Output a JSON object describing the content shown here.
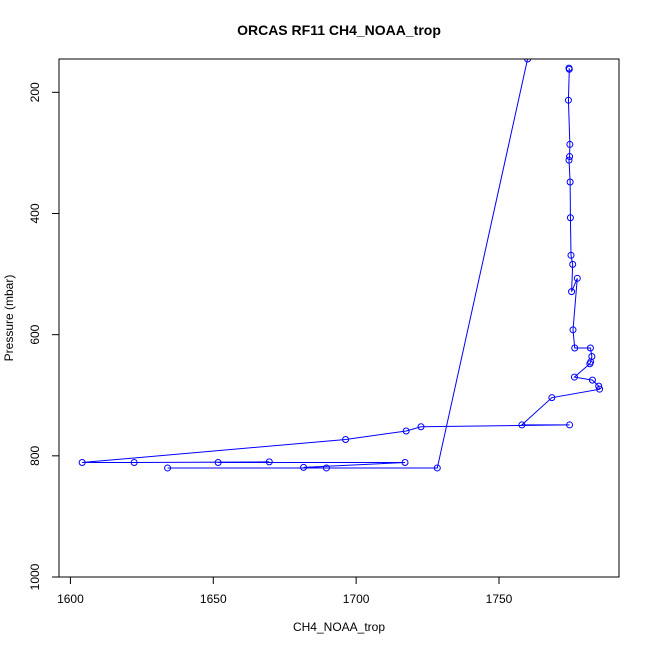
{
  "chart_data": {
    "type": "line",
    "title": "ORCAS RF11 CH4_NOAA_trop",
    "xlabel": "CH4_NOAA_trop",
    "ylabel": "Pressure (mbar)",
    "xlim": [
      1596,
      1792
    ],
    "ylim": [
      1000,
      145
    ],
    "y_reversed": true,
    "x_ticks": [
      1600,
      1650,
      1700,
      1750
    ],
    "y_ticks": [
      200,
      400,
      600,
      800,
      1000
    ],
    "grid": false,
    "legend": "none",
    "series": [
      {
        "color": "#0000ff",
        "marker": "open-circle",
        "lines": true,
        "x": [
          1774.5,
          1774.6,
          1774.3,
          1774.8,
          1774.7,
          1774.5,
          1774.9,
          1775.0,
          1775.2,
          1775.8,
          1775.4,
          1777.4,
          1775.9,
          1776.5,
          1782.0,
          1782.5,
          1782.1,
          1781.8,
          1776.4,
          1782.7,
          1784.9,
          1785.2,
          1768.5,
          1758.0,
          1774.7,
          1722.7,
          1717.5,
          1696.3,
          1604.1,
          1622.3,
          1669.6,
          1651.7,
          1717.1,
          1681.6,
          1689.6,
          1634.0,
          1728.4,
          1760.0
        ],
        "y": [
          160,
          162,
          213,
          286,
          306,
          312,
          348,
          407,
          469,
          484,
          529,
          507,
          592,
          622,
          622,
          636,
          645,
          648,
          670,
          675,
          685,
          690,
          704,
          749,
          749,
          752,
          759,
          773,
          811,
          811,
          810,
          811,
          811,
          819,
          820,
          820,
          820,
          145
        ]
      }
    ]
  }
}
